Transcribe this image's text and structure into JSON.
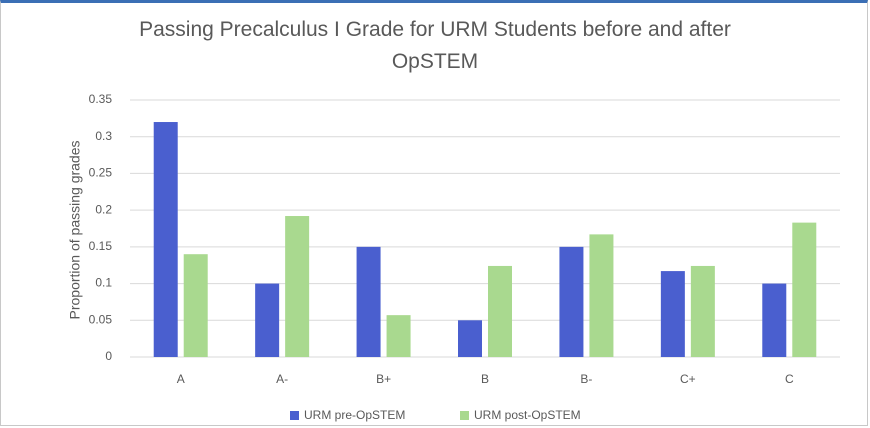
{
  "chart_data": {
    "type": "bar",
    "title": "Passing Precalculus I Grade for URM Students before and after OpSTEM",
    "y_label": "Proportion of passing grades",
    "categories": [
      "A",
      "A-",
      "B+",
      "B",
      "B-",
      "C+",
      "C"
    ],
    "series": [
      {
        "name": "URM pre-OpSTEM",
        "color": "#4a5fcf",
        "values": [
          0.32,
          0.1,
          0.15,
          0.05,
          0.15,
          0.117,
          0.1
        ]
      },
      {
        "name": "URM post-OpSTEM",
        "color": "#a9d98f",
        "values": [
          0.14,
          0.192,
          0.057,
          0.124,
          0.167,
          0.124,
          0.183
        ]
      }
    ],
    "ylim": [
      0,
      0.35
    ],
    "yticks": [
      0,
      0.05,
      0.1,
      0.15,
      0.2,
      0.25,
      0.3,
      0.35
    ],
    "grid": true,
    "legend": "bottom"
  }
}
